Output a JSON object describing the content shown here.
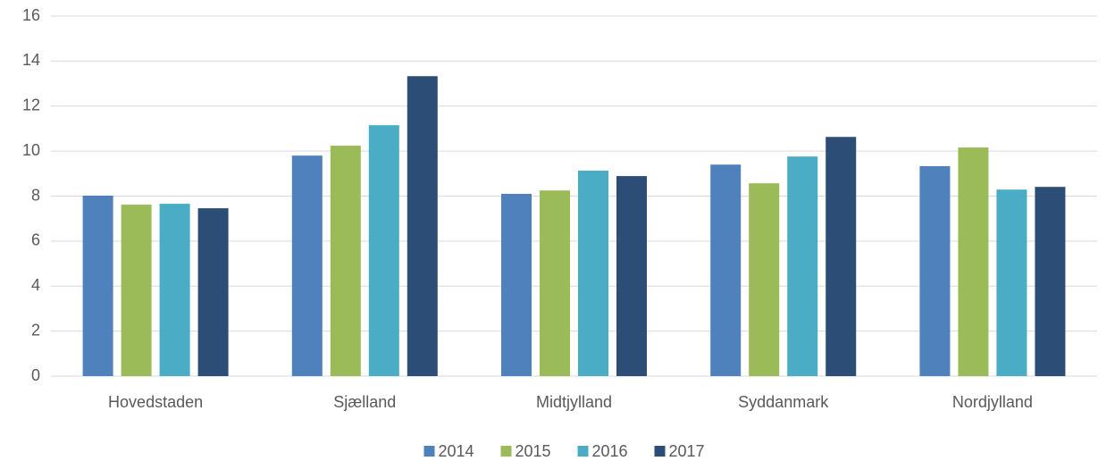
{
  "chart_data": {
    "type": "bar",
    "categories": [
      "Hovedstaden",
      "Sjælland",
      "Midtjylland",
      "Syddanmark",
      "Nordjylland"
    ],
    "series": [
      {
        "name": "2014",
        "color": "#4f81bd",
        "values": [
          8.02,
          9.8,
          8.1,
          9.4,
          9.33
        ]
      },
      {
        "name": "2015",
        "color": "#9bbb59",
        "values": [
          7.62,
          10.24,
          8.25,
          8.57,
          10.16
        ]
      },
      {
        "name": "2016",
        "color": "#4bacc6",
        "values": [
          7.66,
          11.15,
          9.13,
          9.76,
          8.29
        ]
      },
      {
        "name": "2017",
        "color": "#2c4d75",
        "values": [
          7.46,
          13.33,
          8.89,
          10.63,
          8.41
        ]
      }
    ],
    "ylim": [
      0,
      16
    ],
    "yticks": [
      0,
      2,
      4,
      6,
      8,
      10,
      12,
      14,
      16
    ],
    "grid": true,
    "legend": "bottom"
  }
}
